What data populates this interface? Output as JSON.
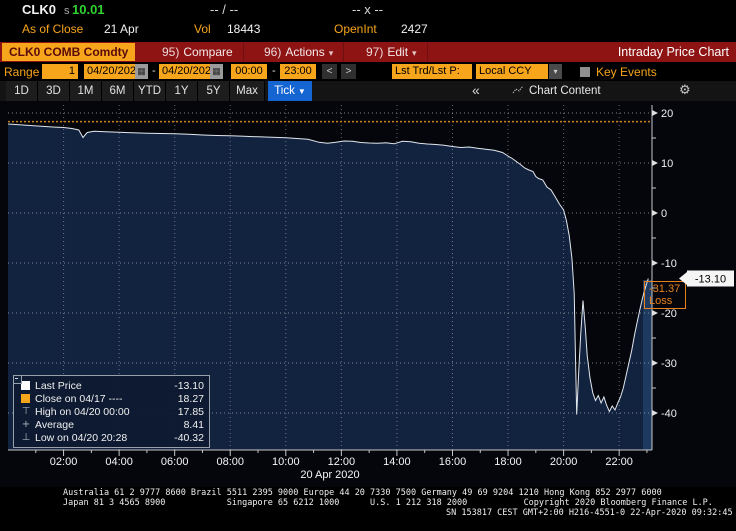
{
  "header": {
    "ticker": "CLK0",
    "price_prefix": "s",
    "price": "10.01",
    "bid_ask": "-- / --",
    "size": "-- x --",
    "as_of_label": "As of Close",
    "as_of_value": "21 Apr",
    "vol_label": "Vol",
    "vol_value": "18443",
    "open_int_label": "OpenInt",
    "open_int_value": "2427"
  },
  "toolbar": {
    "security": "CLK0 COMB Comdty",
    "menus": [
      {
        "num": "95)",
        "label": "Compare",
        "arrow": ""
      },
      {
        "num": "96)",
        "label": "Actions",
        "arrow": "▾"
      },
      {
        "num": "97)",
        "label": "Edit",
        "arrow": "▾"
      }
    ],
    "title": "Intraday Price Chart"
  },
  "rangebar": {
    "range_label": "Range",
    "range_value": "1",
    "date_from": "04/20/2020",
    "date_to": "04/20/2020",
    "time_from": "00:00",
    "time_to": "23:00",
    "dash": "-",
    "calendar_glyph": "▦",
    "prev": "<",
    "next": ">",
    "lst_trd": "Lst Trd/Lst P:",
    "currency": "Local CCY",
    "currency_dd": "▾",
    "key_events": "Key Events"
  },
  "tabs": {
    "items": [
      "1D",
      "3D",
      "1M",
      "6M",
      "YTD",
      "1Y",
      "5Y",
      "Max"
    ],
    "selected_label": "Tick",
    "selected_arrow": "▼",
    "collapse": "«",
    "chart_content_label": "Chart Content",
    "gear_glyph": "⚙"
  },
  "chart_data": {
    "type": "line",
    "title": "Intraday Price Chart",
    "date_label": "20 Apr 2020",
    "x_ticks": [
      "02:00",
      "04:00",
      "06:00",
      "08:00",
      "10:00",
      "12:00",
      "14:00",
      "16:00",
      "18:00",
      "20:00",
      "22:00"
    ],
    "y_ticks": [
      20,
      10,
      0,
      -10,
      -20,
      -30,
      -40
    ],
    "y_minor": [
      15,
      5,
      -5,
      -15,
      -25,
      -35
    ],
    "ylim": [
      -47,
      22
    ],
    "x_hours_range": [
      0,
      23
    ],
    "close_prev": 18.27,
    "last_price": -13.1,
    "last_price_label": "-13.10",
    "loss_label": {
      "value": "-31.37",
      "text": "Loss"
    },
    "legend": {
      "rows": [
        {
          "swatch": "last-price-square",
          "glyph": "",
          "label": "Last Price",
          "value": "-13.10"
        },
        {
          "swatch": "close-square",
          "glyph": "",
          "label": "Close on 04/17 ----",
          "value": "18.27"
        },
        {
          "swatch": "high-marker",
          "glyph": "⊤",
          "label": "High on 04/20 00:00",
          "value": "17.85"
        },
        {
          "swatch": "average-marker",
          "glyph": "+",
          "label": "Average",
          "value": "8.41"
        },
        {
          "swatch": "low-marker",
          "glyph": "⊥",
          "label": "Low on 04/20 20:28",
          "value": "-40.32"
        }
      ]
    },
    "colors": {
      "fill": "#122340",
      "band": "#1e3a61",
      "line": "#e2e7ee",
      "close_line": "#c8821e",
      "grid": "#a8a8a8",
      "loss": "#e8821e",
      "axis": "#c8c8c8"
    },
    "series": [
      {
        "name": "Last Price",
        "color": "#e2e7ee",
        "points": [
          [
            0,
            17.8
          ],
          [
            0.4,
            17.65
          ],
          [
            0.8,
            17.5
          ],
          [
            1.2,
            17.35
          ],
          [
            1.6,
            17.2
          ],
          [
            2,
            17.1
          ],
          [
            2.3,
            16.9
          ],
          [
            2.55,
            16.6
          ],
          [
            2.7,
            15.1
          ],
          [
            2.85,
            16.1
          ],
          [
            3.1,
            16.35
          ],
          [
            3.5,
            16.25
          ],
          [
            4,
            16.15
          ],
          [
            4.5,
            16.05
          ],
          [
            5,
            15.95
          ],
          [
            5.5,
            15.9
          ],
          [
            6,
            15.85
          ],
          [
            6.5,
            15.75
          ],
          [
            7,
            15.6
          ],
          [
            7.5,
            15.5
          ],
          [
            8,
            15.45
          ],
          [
            8.5,
            15.35
          ],
          [
            9,
            15.25
          ],
          [
            9.5,
            15.15
          ],
          [
            10,
            15.05
          ],
          [
            10.4,
            14.9
          ],
          [
            10.8,
            14.75
          ],
          [
            11.2,
            14.15
          ],
          [
            11.5,
            13.95
          ],
          [
            11.8,
            14.15
          ],
          [
            12.1,
            14.4
          ],
          [
            12.4,
            14.35
          ],
          [
            12.7,
            14.1
          ],
          [
            13,
            14
          ],
          [
            13.3,
            13.95
          ],
          [
            13.6,
            14.05
          ],
          [
            13.9,
            13.85
          ],
          [
            14.2,
            14.35
          ],
          [
            14.5,
            14.25
          ],
          [
            14.8,
            13.95
          ],
          [
            15.1,
            13.8
          ],
          [
            15.4,
            13.7
          ],
          [
            15.7,
            13.55
          ],
          [
            16,
            13.3
          ],
          [
            16.3,
            13.1
          ],
          [
            16.6,
            13.2
          ],
          [
            16.9,
            12.95
          ],
          [
            17.2,
            12.75
          ],
          [
            17.5,
            12.55
          ],
          [
            17.8,
            12.1
          ],
          [
            18,
            11.4
          ],
          [
            18.15,
            10.9
          ],
          [
            18.3,
            10.3
          ],
          [
            18.45,
            9.7
          ],
          [
            18.6,
            9
          ],
          [
            18.75,
            8.6
          ],
          [
            18.9,
            8.3
          ],
          [
            19,
            7.3
          ],
          [
            19.1,
            6.9
          ],
          [
            19.25,
            6.6
          ],
          [
            19.4,
            5.2
          ],
          [
            19.55,
            4.6
          ],
          [
            19.7,
            3.2
          ],
          [
            19.85,
            1.8
          ],
          [
            20,
            0.6
          ],
          [
            20.1,
            -1.5
          ],
          [
            20.2,
            -4.5
          ],
          [
            20.3,
            -9
          ],
          [
            20.38,
            -16
          ],
          [
            20.42,
            -27
          ],
          [
            20.47,
            -40.3
          ],
          [
            20.55,
            -31
          ],
          [
            20.62,
            -24
          ],
          [
            20.7,
            -17.5
          ],
          [
            20.78,
            -23
          ],
          [
            20.85,
            -28.5
          ],
          [
            20.95,
            -33
          ],
          [
            21.05,
            -36
          ],
          [
            21.15,
            -37.5
          ],
          [
            21.25,
            -36.5
          ],
          [
            21.35,
            -38
          ],
          [
            21.45,
            -36.8
          ],
          [
            21.55,
            -38.5
          ],
          [
            21.65,
            -39.7
          ],
          [
            21.75,
            -38.6
          ],
          [
            21.85,
            -39.4
          ],
          [
            21.95,
            -38
          ],
          [
            22.05,
            -36.8
          ],
          [
            22.15,
            -35
          ],
          [
            22.25,
            -32.5
          ],
          [
            22.35,
            -30
          ],
          [
            22.45,
            -27.5
          ],
          [
            22.55,
            -24.5
          ],
          [
            22.65,
            -21.8
          ],
          [
            22.75,
            -19.2
          ],
          [
            22.85,
            -16.8
          ],
          [
            22.95,
            -14.8
          ],
          [
            23.05,
            -13.1
          ]
        ]
      }
    ]
  },
  "footer": {
    "line1": "Australia 61 2 9777 8600 Brazil 5511 2395 9000 Europe 44 20 7330 7500 Germany 49 69 9204 1210 Hong Kong 852 2977 6000",
    "line2": "Japan 81 3 4565 8900            Singapore 65 6212 1000      U.S. 1 212 318 2000           Copyright 2020 Bloomberg Finance L.P.",
    "line3": "SN 153817 CEST GMT+2:00 H216-4551-0 22-Apr-2020 09:32:45"
  }
}
